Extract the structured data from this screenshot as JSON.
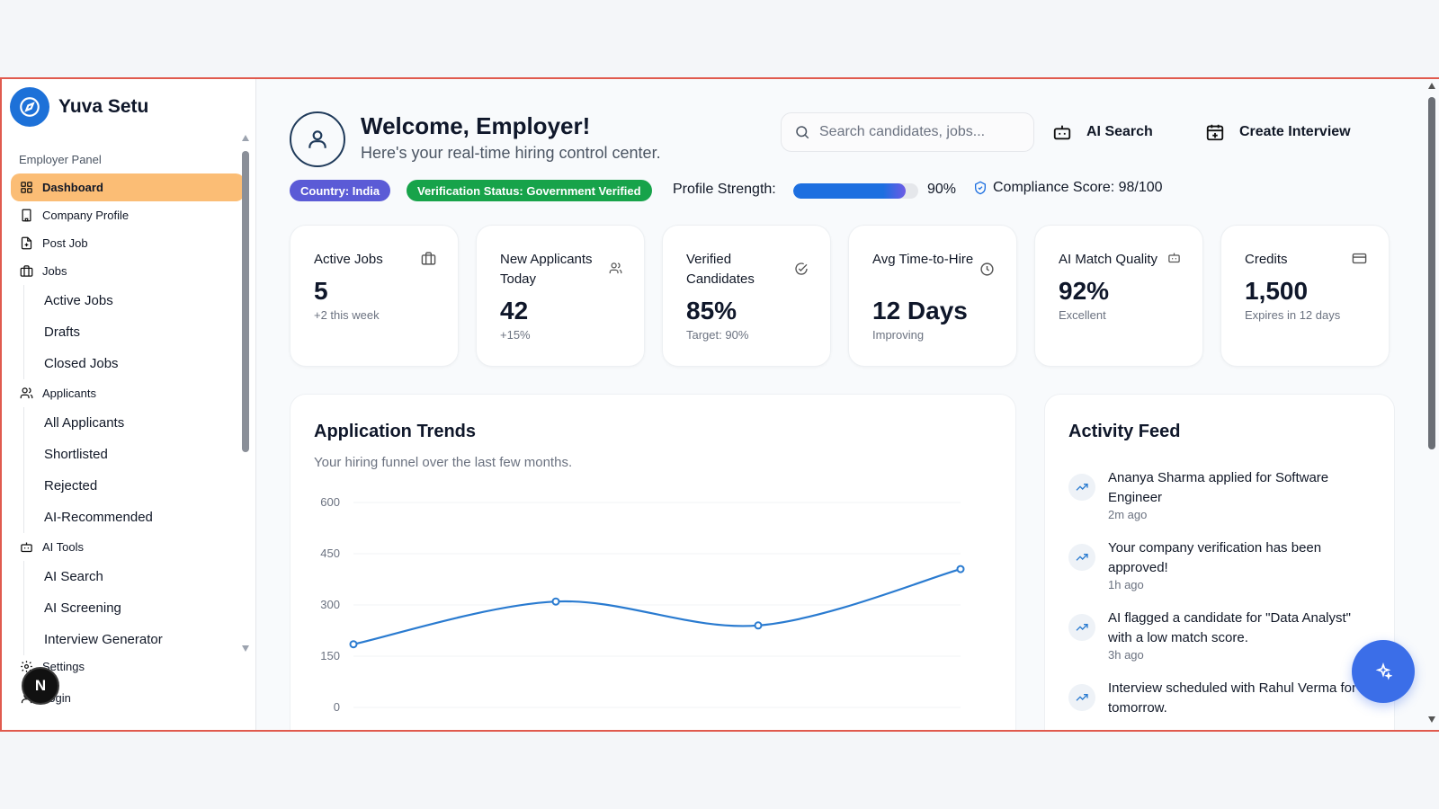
{
  "brand": {
    "name": "Yuva Setu",
    "icon": "compass-icon",
    "color": "#1d71d8"
  },
  "sidebar": {
    "panel_label": "Employer Panel",
    "items": [
      {
        "label": "Dashboard",
        "icon": "grid-icon",
        "active": true
      },
      {
        "label": "Company Profile",
        "icon": "building-icon"
      },
      {
        "label": "Post Job",
        "icon": "file-plus-icon"
      },
      {
        "label": "Jobs",
        "icon": "briefcase-icon",
        "children": [
          "Active Jobs",
          "Drafts",
          "Closed Jobs"
        ]
      },
      {
        "label": "Applicants",
        "icon": "users-icon",
        "children": [
          "All Applicants",
          "Shortlisted",
          "Rejected",
          "AI-Recommended"
        ]
      },
      {
        "label": "AI Tools",
        "icon": "robot-icon",
        "children": [
          "AI Search",
          "AI Screening",
          "Interview Generator"
        ]
      }
    ],
    "bottom_items": [
      {
        "label": "Settings",
        "icon": "gear-icon"
      },
      {
        "label": "Login",
        "icon": "user-icon"
      }
    ],
    "badge_letter": "N"
  },
  "header": {
    "title": "Welcome, Employer!",
    "subtitle": "Here's your real-time hiring control center.",
    "search_placeholder": "Search candidates, jobs...",
    "ai_search_label": "AI Search",
    "create_interview_label": "Create Interview"
  },
  "status": {
    "country": "Country: India",
    "verification": "Verification Status: Government Verified",
    "profile_strength_label": "Profile Strength:",
    "profile_strength_value": 90,
    "profile_strength_text": "90%",
    "compliance": "Compliance Score: 98/100",
    "colors": {
      "country": "#5b5bd6",
      "verified": "#17a34a",
      "progress": "#1d6fe0"
    }
  },
  "stats": [
    {
      "title": "Active Jobs",
      "value": "5",
      "sub": "+2 this week",
      "icon": "briefcase-icon"
    },
    {
      "title": "New Applicants Today",
      "value": "42",
      "sub": "+15%",
      "icon": "users-icon"
    },
    {
      "title": "Verified Candidates",
      "value": "85%",
      "sub": "Target: 90%",
      "icon": "check-circle-icon"
    },
    {
      "title": "Avg Time-to-Hire",
      "value": "12 Days",
      "sub": "Improving",
      "icon": "clock-icon"
    },
    {
      "title": "AI Match Quality",
      "value": "92%",
      "sub": "Excellent",
      "icon": "robot-icon"
    },
    {
      "title": "Credits",
      "value": "1,500",
      "sub": "Expires in 12 days",
      "icon": "credit-card-icon"
    }
  ],
  "trends": {
    "title": "Application Trends",
    "subtitle": "Your hiring funnel over the last few months."
  },
  "chart_data": {
    "type": "line",
    "x": [
      1,
      2,
      3,
      4
    ],
    "values": [
      185,
      310,
      240,
      405
    ],
    "ylim": [
      0,
      600
    ],
    "yticks": [
      "600",
      "450",
      "300",
      "150",
      "0"
    ],
    "grid": true,
    "color": "#2a7bd0"
  },
  "activity": {
    "title": "Activity Feed",
    "items": [
      {
        "message": "Ananya Sharma applied for Software Engineer",
        "time": "2m ago",
        "icon": "trending-up-icon"
      },
      {
        "message": "Your company verification has been approved!",
        "time": "1h ago",
        "icon": "trending-up-icon"
      },
      {
        "message": "AI flagged a candidate for \"Data Analyst\" with a low match score.",
        "time": "3h ago",
        "icon": "trending-up-icon"
      },
      {
        "message": "Interview scheduled with Rahul Verma for tomorrow.",
        "time": "",
        "icon": "trending-up-icon"
      }
    ]
  },
  "fab": {
    "icon": "sparkles-icon",
    "color": "#3b6ee8"
  }
}
